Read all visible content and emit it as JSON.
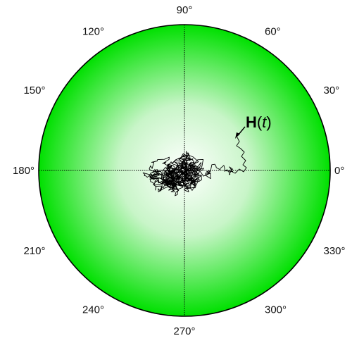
{
  "diagram": {
    "type": "polar-projection",
    "angle_labels": [
      {
        "id": "a0",
        "text": "0°",
        "angle_deg": 0
      },
      {
        "id": "a30",
        "text": "30°",
        "angle_deg": 30
      },
      {
        "id": "a60",
        "text": "60°",
        "angle_deg": 60
      },
      {
        "id": "a90",
        "text": "90°",
        "angle_deg": 90
      },
      {
        "id": "a120",
        "text": "120°",
        "angle_deg": 120
      },
      {
        "id": "a150",
        "text": "150°",
        "angle_deg": 150
      },
      {
        "id": "a180",
        "text": "180°",
        "angle_deg": 180
      },
      {
        "id": "a210",
        "text": "210°",
        "angle_deg": 210
      },
      {
        "id": "a240",
        "text": "240°",
        "angle_deg": 240
      },
      {
        "id": "a270",
        "text": "270°",
        "angle_deg": 270
      },
      {
        "id": "a300",
        "text": "300°",
        "angle_deg": 300
      },
      {
        "id": "a330",
        "text": "330°",
        "angle_deg": 330
      }
    ],
    "vector_label": {
      "bold": "H",
      "open": "(",
      "var": "t",
      "close": ")"
    },
    "colors": {
      "disk_center": "#ffffff",
      "disk_edge": "#00e000",
      "trace": "#000000",
      "crosshair": "#000000"
    }
  }
}
